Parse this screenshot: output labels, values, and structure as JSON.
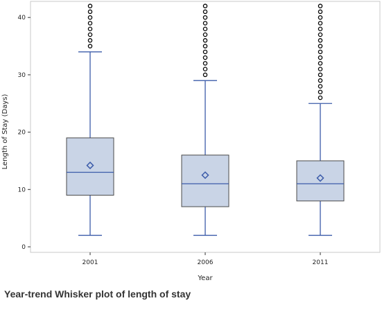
{
  "caption": "Year-trend Whisker plot of length of stay",
  "chart_data": {
    "type": "boxplot",
    "xlabel": "Year",
    "ylabel": "Length of Stay (Days)",
    "ylim": [
      0,
      42
    ],
    "yticks": [
      0,
      10,
      20,
      30,
      40
    ],
    "grid": false,
    "categories": [
      "2001",
      "2006",
      "2011"
    ],
    "boxes": [
      {
        "category": "2001",
        "whisker_low": 2,
        "q1": 9,
        "median": 13,
        "q3": 19,
        "whisker_high": 34,
        "mean": 14.2,
        "outliers": [
          35,
          36,
          37,
          38,
          39,
          40,
          41,
          42
        ]
      },
      {
        "category": "2006",
        "whisker_low": 2,
        "q1": 7,
        "median": 11,
        "q3": 16,
        "whisker_high": 29,
        "mean": 12.5,
        "outliers": [
          30,
          31,
          32,
          33,
          34,
          35,
          36,
          37,
          38,
          39,
          40,
          41,
          42
        ]
      },
      {
        "category": "2011",
        "whisker_low": 2,
        "q1": 8,
        "median": 11,
        "q3": 15,
        "whisker_high": 25,
        "mean": 12,
        "outliers": [
          26,
          27,
          28,
          29,
          30,
          31,
          32,
          33,
          34,
          35,
          36,
          37,
          38,
          39,
          40,
          41,
          42
        ]
      }
    ],
    "colors": {
      "box_fill": "#c9d4e6",
      "box_stroke": "#4a4a4a",
      "line": "#3b5ba9",
      "outlier": "#000000"
    }
  }
}
